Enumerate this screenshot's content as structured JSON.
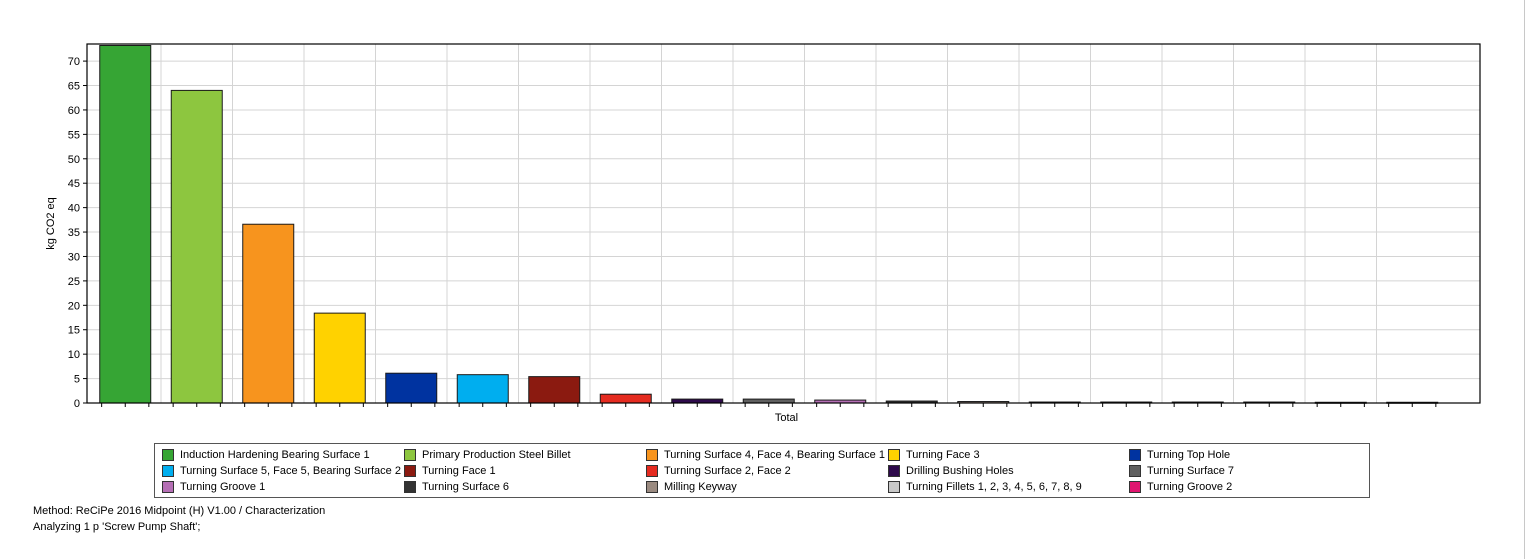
{
  "chart_data": {
    "type": "bar",
    "ylabel": "kg CO2 eq",
    "xlabel": "Total",
    "ylim": [
      0,
      73.5
    ],
    "yticks": [
      0,
      5,
      10,
      15,
      20,
      25,
      30,
      35,
      40,
      45,
      50,
      55,
      60,
      65,
      70
    ],
    "grid": true,
    "legend_position": "bottom",
    "categories": [
      "Induction Hardening Bearing Surface 1",
      "Primary Production Steel Billet",
      "Turning Surface 4, Face 4, Bearing Surface 1",
      "Turning Face 3",
      "Turning Top Hole",
      "Turning Surface 5, Face 5, Bearing Surface 2",
      "Turning Face 1",
      "Turning Surface 2, Face 2",
      "Drilling Bushing Holes",
      "Turning Surface 7",
      "Turning Groove 1",
      "Turning Surface 6",
      "Milling Keyway",
      "Turning Fillets 1, 2, 3, 4, 5, 6, 7, 8, 9",
      "Turning Groove 2",
      "",
      "",
      "",
      ""
    ],
    "values": [
      73.2,
      64.0,
      36.6,
      18.4,
      6.1,
      5.8,
      5.4,
      1.8,
      0.8,
      0.8,
      0.6,
      0.4,
      0.3,
      0.2,
      0.2,
      0.2,
      0.2,
      0.15,
      0.15
    ],
    "colors": [
      "#36a534",
      "#8dc63f",
      "#f7941e",
      "#ffd200",
      "#0033a0",
      "#00aeef",
      "#8b1a10",
      "#e52b20",
      "#2e0a4b",
      "#606060",
      "#b56fb5",
      "#333333",
      "#9a8a80",
      "#c8c8c8",
      "#e0156f",
      "#2a9dd8",
      "#c47ac0",
      "#27b8a0",
      "#f7941e"
    ]
  },
  "legend": [
    {
      "label": "Induction Hardening Bearing Surface 1",
      "color": "#36a534"
    },
    {
      "label": "Primary Production Steel Billet",
      "color": "#8dc63f"
    },
    {
      "label": "Turning Surface 4, Face 4, Bearing Surface 1",
      "color": "#f7941e"
    },
    {
      "label": "Turning Face 3",
      "color": "#ffd200"
    },
    {
      "label": "Turning Top Hole",
      "color": "#0033a0"
    },
    {
      "label": "Turning Surface 5, Face 5, Bearing Surface 2",
      "color": "#00aeef"
    },
    {
      "label": "Turning Face 1",
      "color": "#8b1a10"
    },
    {
      "label": "Turning Surface 2, Face 2",
      "color": "#e52b20"
    },
    {
      "label": "Drilling Bushing Holes",
      "color": "#2e0a4b"
    },
    {
      "label": "Turning Surface 7",
      "color": "#606060"
    },
    {
      "label": "Turning Groove 1",
      "color": "#b56fb5"
    },
    {
      "label": "Turning Surface 6",
      "color": "#333333"
    },
    {
      "label": "Milling Keyway",
      "color": "#9a8a80"
    },
    {
      "label": "Turning Fillets 1, 2, 3, 4, 5, 6, 7, 8, 9",
      "color": "#c8c8c8"
    },
    {
      "label": "Turning Groove 2",
      "color": "#e0156f"
    }
  ],
  "footer": {
    "method": "Method: ReCiPe 2016 Midpoint (H) V1.00 / Characterization",
    "analyzing": "Analyzing 1 p 'Screw Pump Shaft';"
  }
}
